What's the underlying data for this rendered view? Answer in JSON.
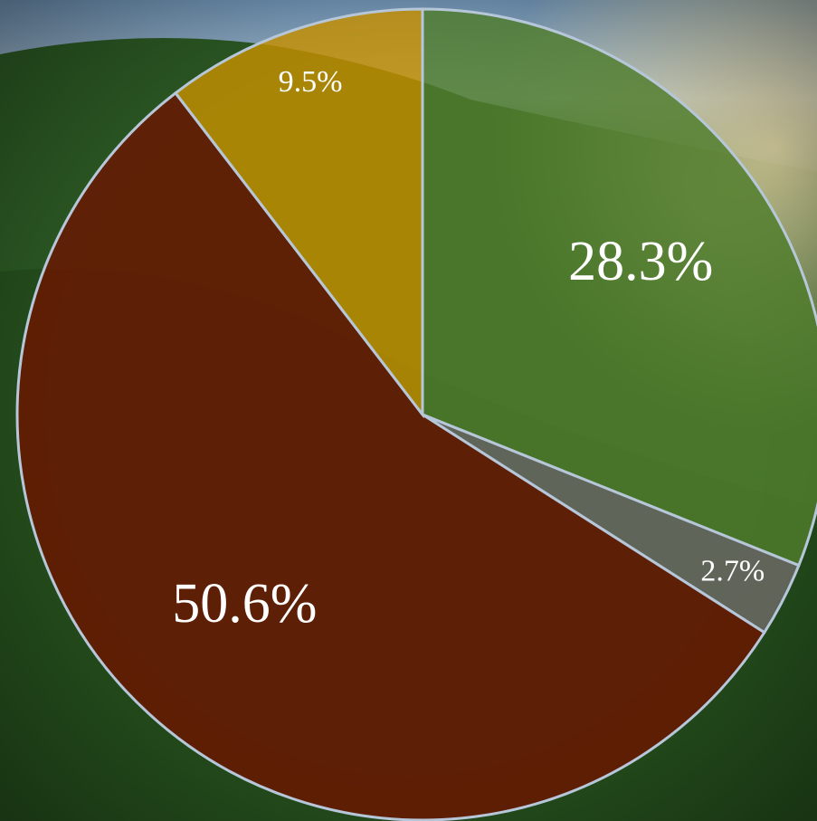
{
  "chart_data": {
    "type": "pie",
    "categories": [
      null,
      null,
      null,
      null
    ],
    "values": [
      28.3,
      2.7,
      50.6,
      9.5
    ],
    "value_labels": [
      "28.3%",
      "2.7%",
      "50.6%",
      "9.5%"
    ],
    "colors": [
      "#4f7d2c",
      "#6e6a68",
      "#6a1500",
      "#c48f00"
    ]
  }
}
